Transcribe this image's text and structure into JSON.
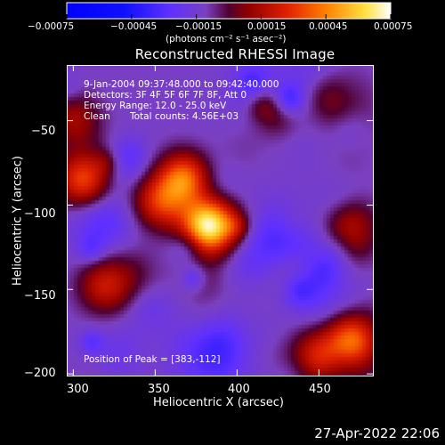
{
  "chart_data": {
    "type": "heatmap",
    "title": "Reconstructed RHESSI Image",
    "xlabel": "Heliocentric X (arcsec)",
    "ylabel": "Heliocentric Y (arcsec)",
    "xlim": [
      296,
      483
    ],
    "ylim": [
      -201,
      -17
    ],
    "x_ticks": [
      300,
      350,
      400,
      450
    ],
    "y_ticks": [
      -50,
      -100,
      -150,
      -200
    ],
    "x_tick_labels": [
      "300",
      "350",
      "400",
      "450"
    ],
    "y_tick_labels": [
      "−50",
      "−100",
      "−150",
      "−200"
    ],
    "colorbar": {
      "range": [
        -0.00075,
        0.00075
      ],
      "ticks": [
        -0.00075,
        -0.00045,
        -0.00015,
        0.00015,
        0.00045,
        0.00075
      ],
      "tick_labels": [
        "−0.00075",
        "−0.00045",
        "−0.00015",
        "0.00015",
        "0.00045",
        "0.00075"
      ],
      "units": "(photons cm⁻² s⁻¹ asec⁻²)"
    },
    "annotations": {
      "time": "9-Jan-2004 09:37:48.000 to 09:42:40.000",
      "detectors": "Detectors: 3F 4F 5F 6F 7F 8F, Att 0",
      "energy": "Energy Range: 12.0 - 25.0 keV",
      "clean_left": "Clean",
      "clean_right": "Total counts: 4.56E+03",
      "peak": "Position of Peak = [383,-112]"
    },
    "peak_position": [
      383,
      -112
    ],
    "sources": [
      {
        "x": 368,
        "y": -85,
        "peak": 0.00058
      },
      {
        "x": 383,
        "y": -112,
        "peak": 0.00075
      },
      {
        "x": 352,
        "y": -98,
        "peak": 0.00036
      },
      {
        "x": 306,
        "y": -85,
        "peak": 0.00045
      },
      {
        "x": 470,
        "y": -180,
        "peak": 0.00052
      },
      {
        "x": 448,
        "y": -190,
        "peak": 0.00036
      },
      {
        "x": 318,
        "y": -148,
        "peak": 0.00026
      },
      {
        "x": 425,
        "y": -42,
        "peak": 0.00022
      },
      {
        "x": 300,
        "y": -48,
        "peak": 0.00022
      },
      {
        "x": 470,
        "y": -110,
        "peak": 0.00018
      }
    ]
  },
  "footer": {
    "timestamp": "27-Apr-2022 22:06"
  }
}
